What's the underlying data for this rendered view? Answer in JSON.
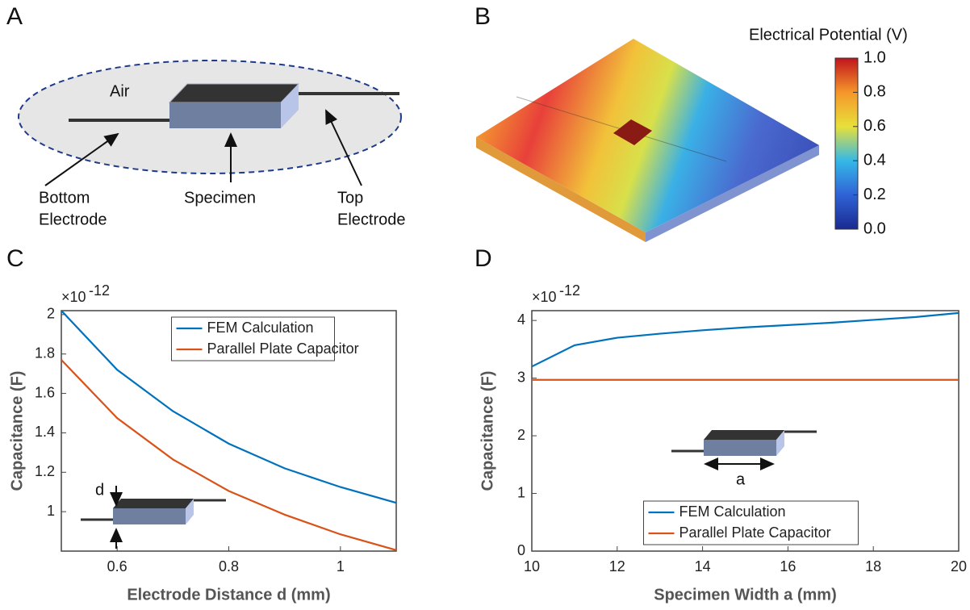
{
  "figure": {
    "panel_letters": [
      "A",
      "B",
      "C",
      "D"
    ],
    "diagram": {
      "air": "Air",
      "bottom_electrode": [
        "Bottom",
        "Electrode"
      ],
      "specimen": "Specimen",
      "top_electrode": [
        "Top",
        "Electrode"
      ]
    },
    "colorbar": {
      "title": "Electrical Potential (V)",
      "lim": [
        0,
        1
      ],
      "ticks": [
        {
          "value": 0,
          "label": "0.0"
        },
        {
          "value": 0.2,
          "label": "0.2"
        },
        {
          "value": 0.4,
          "label": "0.4"
        },
        {
          "value": 0.6,
          "label": "0.6"
        },
        {
          "value": 0.8,
          "label": "0.8"
        },
        {
          "value": 1,
          "label": "1.0"
        }
      ],
      "colors": [
        "#1a2a8f",
        "#2f63d6",
        "#35b8e8",
        "#e8e03a",
        "#f5962a",
        "#c0141c"
      ]
    }
  },
  "chart_data": [
    {
      "type": "line",
      "xlabel": "Electrode Distance d (mm)",
      "ylabel": "Capacitance (F)",
      "y_multiplier": "×10",
      "y_exponent": "-12",
      "inset_label": "d",
      "x": [
        0.5,
        0.6,
        0.7,
        0.8,
        0.9,
        1.0,
        1.1
      ],
      "series": [
        {
          "name": "FEM Calculation",
          "color": "#0072bd",
          "values": [
            2.02,
            1.72,
            1.51,
            1.345,
            1.22,
            1.125,
            1.045
          ]
        },
        {
          "name": "Parallel Plate Capacitor",
          "color": "#d95319",
          "values": [
            1.77,
            1.475,
            1.265,
            1.105,
            0.985,
            0.885,
            0.805
          ]
        }
      ],
      "xlim": [
        0.5,
        1.1
      ],
      "xticks": [
        0.6,
        0.8,
        {
          "value": 1,
          "label": "1"
        }
      ],
      "ylim": [
        0.8,
        2.02
      ],
      "yticks": [
        1,
        1.2,
        1.4,
        1.6,
        1.8,
        2
      ],
      "legend": "upper center"
    },
    {
      "type": "line",
      "xlabel": "Specimen Width a (mm)",
      "ylabel": "Capacitance (F)",
      "y_multiplier": "×10",
      "y_exponent": "-12",
      "inset_label": "a",
      "x": [
        10,
        11,
        12,
        13,
        14,
        15,
        16,
        17,
        18,
        19,
        20
      ],
      "series": [
        {
          "name": "FEM Calculation",
          "color": "#0072bd",
          "values": [
            3.2,
            3.57,
            3.7,
            3.77,
            3.83,
            3.88,
            3.92,
            3.96,
            4.01,
            4.06,
            4.13
          ]
        },
        {
          "name": "Parallel Plate Capacitor",
          "color": "#d95319",
          "values": [
            2.97,
            2.97,
            2.97,
            2.97,
            2.97,
            2.97,
            2.97,
            2.97,
            2.97,
            2.97,
            2.97
          ]
        }
      ],
      "xlim": [
        10,
        20
      ],
      "xticks": [
        10,
        12,
        14,
        16,
        18,
        20
      ],
      "ylim": [
        0,
        4.17
      ],
      "yticks": [
        0,
        1,
        2,
        3,
        4
      ],
      "legend": "lower center"
    }
  ]
}
